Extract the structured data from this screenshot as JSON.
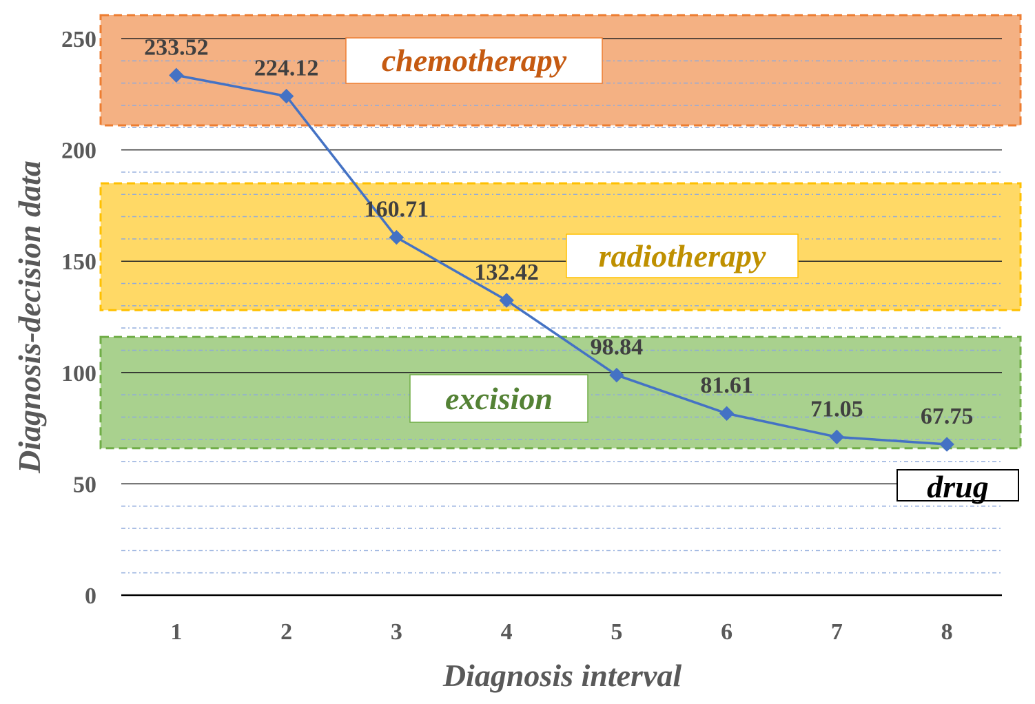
{
  "chart_data": {
    "type": "line",
    "title": "",
    "xlabel": "Diagnosis interval",
    "ylabel": "Diagnosis-decision data",
    "categories": [
      "1",
      "2",
      "3",
      "4",
      "5",
      "6",
      "7",
      "8"
    ],
    "series": [
      {
        "name": "Diagnosis-decision data",
        "values": [
          233.52,
          224.12,
          160.71,
          132.42,
          98.84,
          81.61,
          71.05,
          67.75
        ],
        "labels": [
          "233.52",
          "224.12",
          "160.71",
          "132.42",
          "98.84",
          "81.61",
          "71.05",
          "67.75"
        ],
        "color": "#4472C4"
      }
    ],
    "ylim": [
      0,
      250
    ],
    "yticks": [
      "0",
      "50",
      "100",
      "150",
      "200",
      "250"
    ],
    "grid": true,
    "zones": [
      {
        "name": "chemotherapy",
        "from": 211,
        "to": 250,
        "fill": "#F4B183",
        "border": "#ED7D31",
        "text_color": "#C55A11"
      },
      {
        "name": "radiotherapy",
        "from": 128,
        "to": 185,
        "fill": "#FFD966",
        "border": "#FFC000",
        "text_color": "#BF9000"
      },
      {
        "name": "excision",
        "from": 66,
        "to": 116,
        "fill": "#A9D18E",
        "border": "#70AD47",
        "text_color": "#548235"
      },
      {
        "name": "drug",
        "from": 0,
        "to": 66,
        "fill": "none",
        "border": "#000000",
        "text_color": "#000000"
      }
    ]
  }
}
